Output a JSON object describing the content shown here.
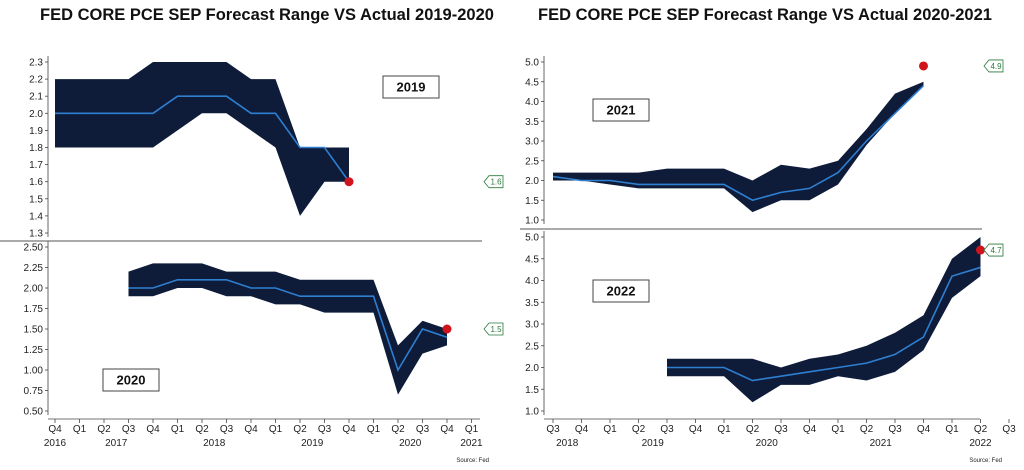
{
  "titles": {
    "left": "FED CORE PCE SEP Forecast Range VS Actual 2019-2020",
    "right": "FED CORE PCE SEP Forecast Range VS Actual 2020-2021"
  },
  "source_left": "Source: Fed",
  "source_right": "Source: Fed",
  "colors": {
    "band": "#0e1c3a",
    "median": "#2f7fd0",
    "actual": "#d0141c",
    "tag": "#2a7a3a"
  },
  "chart_data": [
    {
      "type": "area",
      "panel": "top-left",
      "label": "2019",
      "x": [
        "Q4 2016",
        "Q1 2017",
        "Q2 2017",
        "Q3 2017",
        "Q4 2017",
        "Q1 2018",
        "Q2 2018",
        "Q3 2018",
        "Q4 2018",
        "Q1 2019",
        "Q2 2019",
        "Q3 2019",
        "Q4 2019"
      ],
      "series": [
        {
          "low": [
            1.8,
            1.8,
            1.8,
            1.8,
            1.8,
            1.9,
            2.0,
            2.0,
            1.9,
            1.8,
            1.4,
            1.6,
            1.6
          ]
        },
        {
          "median": [
            2.0,
            2.0,
            2.0,
            2.0,
            2.0,
            2.1,
            2.1,
            2.1,
            2.0,
            2.0,
            1.8,
            1.8,
            1.6
          ]
        },
        {
          "high": [
            2.2,
            2.2,
            2.2,
            2.2,
            2.3,
            2.3,
            2.3,
            2.3,
            2.2,
            2.2,
            1.8,
            1.8,
            1.8
          ]
        }
      ],
      "actual": {
        "x": "Q4 2019",
        "y": 1.6,
        "tag": "1.6"
      },
      "ylim": [
        1.3,
        2.3
      ],
      "yticks": [
        "1.3",
        "1.4",
        "1.5",
        "1.6",
        "1.7",
        "1.8",
        "1.9",
        "2.0",
        "2.1",
        "2.2",
        "2.3"
      ]
    },
    {
      "type": "area",
      "panel": "bottom-left",
      "label": "2020",
      "x": [
        "Q3 2017",
        "Q4 2017",
        "Q1 2018",
        "Q2 2018",
        "Q3 2018",
        "Q4 2018",
        "Q1 2019",
        "Q2 2019",
        "Q3 2019",
        "Q4 2019",
        "Q1 2020",
        "Q2 2020",
        "Q3 2020",
        "Q4 2020"
      ],
      "series": [
        {
          "low": [
            1.9,
            1.9,
            2.0,
            2.0,
            1.9,
            1.9,
            1.8,
            1.8,
            1.7,
            1.7,
            1.7,
            0.7,
            1.2,
            1.3
          ]
        },
        {
          "median": [
            2.0,
            2.0,
            2.1,
            2.1,
            2.1,
            2.0,
            2.0,
            1.9,
            1.9,
            1.9,
            1.9,
            1.0,
            1.5,
            1.4
          ]
        },
        {
          "high": [
            2.2,
            2.3,
            2.3,
            2.3,
            2.2,
            2.2,
            2.2,
            2.1,
            2.1,
            2.1,
            2.1,
            1.3,
            1.6,
            1.5
          ]
        }
      ],
      "actual": {
        "x": "Q4 2020",
        "y": 1.5,
        "tag": "1.5"
      },
      "ylim": [
        0.5,
        2.5
      ],
      "yticks": [
        "0.50",
        "0.75",
        "1.00",
        "1.25",
        "1.50",
        "1.75",
        "2.00",
        "2.25",
        "2.50"
      ],
      "xticks": [
        "Q4",
        "Q1",
        "Q2",
        "Q3",
        "Q4",
        "Q1",
        "Q2",
        "Q3",
        "Q4",
        "Q1",
        "Q2",
        "Q3",
        "Q4",
        "Q1",
        "Q2",
        "Q3",
        "Q4",
        "Q1"
      ],
      "years": [
        "2016",
        "2017",
        "2018",
        "2019",
        "2020",
        "2021"
      ]
    },
    {
      "type": "area",
      "panel": "top-right",
      "label": "2021",
      "x": [
        "Q3 2018",
        "Q4 2018",
        "Q1 2019",
        "Q2 2019",
        "Q3 2019",
        "Q4 2019",
        "Q1 2020",
        "Q2 2020",
        "Q3 2020",
        "Q4 2020",
        "Q1 2021",
        "Q2 2021",
        "Q3 2021",
        "Q4 2021"
      ],
      "series": [
        {
          "low": [
            2.0,
            2.0,
            1.9,
            1.8,
            1.8,
            1.8,
            1.8,
            1.2,
            1.5,
            1.5,
            1.9,
            2.9,
            3.7,
            4.4
          ]
        },
        {
          "median": [
            2.1,
            2.0,
            2.0,
            1.9,
            1.9,
            1.9,
            1.9,
            1.5,
            1.7,
            1.8,
            2.2,
            3.0,
            3.7,
            4.4
          ]
        },
        {
          "high": [
            2.2,
            2.2,
            2.2,
            2.2,
            2.3,
            2.3,
            2.3,
            2.0,
            2.4,
            2.3,
            2.5,
            3.3,
            4.2,
            4.5
          ]
        }
      ],
      "actual": {
        "x": "Q4 2021",
        "y": 4.9,
        "tag": "4.9"
      },
      "ylim": [
        1.0,
        5.0
      ],
      "yticks": [
        "1.0",
        "1.5",
        "2.0",
        "2.5",
        "3.0",
        "3.5",
        "4.0",
        "4.5",
        "5.0"
      ]
    },
    {
      "type": "area",
      "panel": "bottom-right",
      "label": "2022",
      "x": [
        "Q3 2019",
        "Q4 2019",
        "Q1 2020",
        "Q2 2020",
        "Q3 2020",
        "Q4 2020",
        "Q1 2021",
        "Q2 2021",
        "Q3 2021",
        "Q4 2021",
        "Q1 2022",
        "Q2 2022"
      ],
      "series": [
        {
          "low": [
            1.8,
            1.8,
            1.8,
            1.2,
            1.6,
            1.6,
            1.8,
            1.7,
            1.9,
            2.4,
            3.6,
            4.1
          ]
        },
        {
          "median": [
            2.0,
            2.0,
            2.0,
            1.7,
            1.8,
            1.9,
            2.0,
            2.1,
            2.3,
            2.7,
            4.1,
            4.3
          ]
        },
        {
          "high": [
            2.2,
            2.2,
            2.2,
            2.2,
            2.0,
            2.2,
            2.3,
            2.5,
            2.8,
            3.2,
            4.5,
            5.0
          ]
        }
      ],
      "actual": {
        "x": "Q2 2022",
        "y": 4.7,
        "tag": "4.7"
      },
      "ylim": [
        1.0,
        5.0
      ],
      "yticks": [
        "1.0",
        "1.5",
        "2.0",
        "2.5",
        "3.0",
        "3.5",
        "4.0",
        "4.5",
        "5.0"
      ],
      "xticks": [
        "Q3",
        "Q4",
        "Q1",
        "Q2",
        "Q3",
        "Q4",
        "Q1",
        "Q2",
        "Q3",
        "Q4",
        "Q1",
        "Q2",
        "Q3",
        "Q4",
        "Q1",
        "Q2",
        "Q3"
      ],
      "years": [
        "2018",
        "2019",
        "2020",
        "2021",
        "2022"
      ]
    }
  ]
}
